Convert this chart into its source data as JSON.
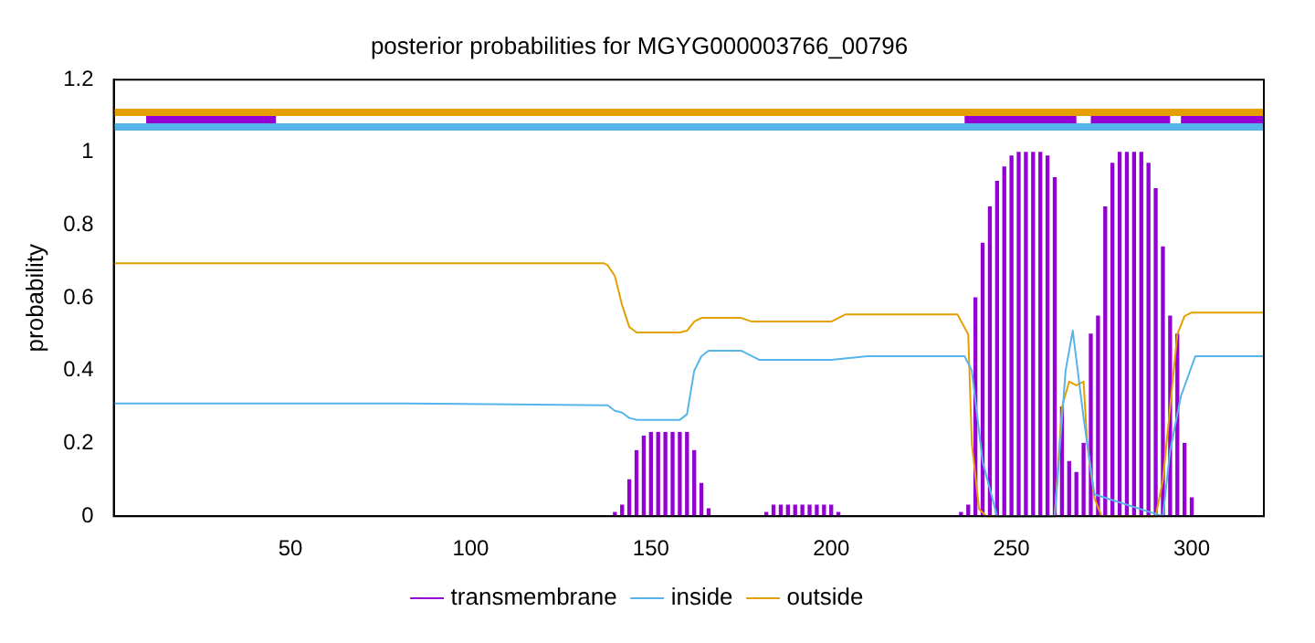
{
  "chart_data": {
    "type": "line",
    "title": "posterior probabilities for MGYG000003766_00796",
    "ylabel": "probability",
    "xlim": [
      1,
      320
    ],
    "xticks": [
      50,
      100,
      150,
      200,
      250,
      300
    ],
    "ylim": [
      0,
      1.2
    ],
    "yticks": [
      0,
      0.2,
      0.4,
      0.6,
      0.8,
      1,
      1.2
    ],
    "grid": false,
    "legend": "bottom",
    "marker": "none",
    "line_style": "solid",
    "series": [
      {
        "name": "transmembrane",
        "type": "bar",
        "color": "#9400d3",
        "x": [
          138,
          140,
          142,
          144,
          146,
          148,
          150,
          152,
          154,
          156,
          158,
          160,
          162,
          164,
          166,
          168,
          182,
          184,
          186,
          188,
          190,
          192,
          194,
          196,
          198,
          200,
          202,
          234,
          236,
          238,
          240,
          242,
          244,
          246,
          248,
          250,
          252,
          254,
          256,
          258,
          260,
          262,
          264,
          266,
          268,
          270,
          272,
          274,
          276,
          278,
          280,
          282,
          284,
          286,
          288,
          290,
          292,
          294,
          296,
          298,
          300,
          302
        ],
        "values": [
          0,
          0.01,
          0.03,
          0.1,
          0.18,
          0.22,
          0.23,
          0.23,
          0.23,
          0.23,
          0.23,
          0.23,
          0.18,
          0.09,
          0.02,
          0,
          0.01,
          0.03,
          0.03,
          0.03,
          0.03,
          0.03,
          0.03,
          0.03,
          0.03,
          0.03,
          0.01,
          0,
          0.01,
          0.03,
          0.6,
          0.75,
          0.85,
          0.92,
          0.96,
          0.99,
          1,
          1,
          1,
          1,
          0.99,
          0.93,
          0.3,
          0.15,
          0.12,
          0.2,
          0.5,
          0.55,
          0.85,
          0.97,
          1,
          1,
          1,
          1,
          0.97,
          0.9,
          0.74,
          0.55,
          0.5,
          0.2,
          0.05,
          0
        ]
      },
      {
        "name": "inside",
        "color": "#56b4e9",
        "x": [
          1,
          82,
          138,
          140,
          142,
          144,
          146,
          158,
          160,
          162,
          164,
          166,
          175,
          180,
          200,
          210,
          237,
          239,
          242,
          246,
          262,
          265,
          267,
          270,
          273,
          292,
          294,
          297,
          301,
          320
        ],
        "values": [
          0.31,
          0.31,
          0.305,
          0.29,
          0.285,
          0.27,
          0.265,
          0.265,
          0.28,
          0.4,
          0.44,
          0.455,
          0.455,
          0.43,
          0.43,
          0.44,
          0.44,
          0.4,
          0.15,
          0,
          0,
          0.4,
          0.51,
          0.27,
          0.06,
          0,
          0.18,
          0.33,
          0.44,
          0.44
        ]
      },
      {
        "name": "outside",
        "color": "#e69f00",
        "x": [
          1,
          137,
          138,
          140,
          142,
          144,
          146,
          158,
          160,
          162,
          164,
          175,
          178,
          200,
          204,
          235,
          238,
          239,
          241,
          243,
          262,
          264,
          266,
          268,
          270,
          271,
          273,
          275,
          290,
          292,
          294,
          296,
          298,
          300,
          320
        ],
        "values": [
          0.695,
          0.695,
          0.69,
          0.66,
          0.58,
          0.52,
          0.505,
          0.505,
          0.51,
          0.535,
          0.545,
          0.545,
          0.535,
          0.535,
          0.555,
          0.555,
          0.5,
          0.2,
          0.02,
          0,
          0,
          0.3,
          0.37,
          0.36,
          0.37,
          0.2,
          0.05,
          0,
          0,
          0.1,
          0.3,
          0.5,
          0.55,
          0.56,
          0.56
        ]
      },
      {
        "color": "#e69f00",
        "x": [
          1,
          320
        ],
        "values": [
          1.11,
          1.11
        ]
      },
      {
        "color": "#56b4e9",
        "x": [
          1,
          320
        ],
        "values": [
          1.07,
          1.07
        ]
      },
      {
        "color": "#9400d3",
        "x": [
          10,
          46,
          47,
          237,
          268,
          269,
          272,
          294,
          295,
          297,
          320
        ],
        "values": [
          1.09,
          1.09,
          null,
          1.09,
          1.09,
          null,
          1.09,
          1.09,
          null,
          1.09,
          1.09
        ]
      }
    ]
  }
}
